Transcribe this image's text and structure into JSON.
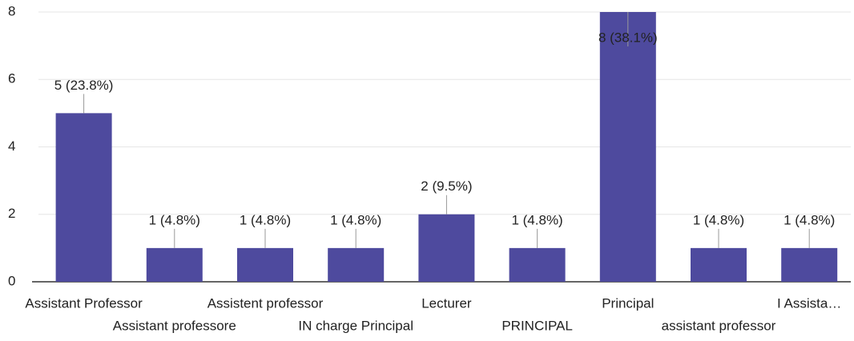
{
  "chart_data": {
    "type": "bar",
    "categories": [
      "Assistant Professor",
      "Assistant professore",
      "Assistent professor",
      "IN charge Principal",
      "Lecturer",
      "PRINCIPAL",
      "Principal",
      "assistant professor",
      "I Assista…"
    ],
    "values": [
      5,
      1,
      1,
      1,
      2,
      1,
      8,
      1,
      1
    ],
    "value_labels": [
      "5 (23.8%)",
      "1 (4.8%)",
      "1 (4.8%)",
      "1 (4.8%)",
      "2 (9.5%)",
      "1 (4.8%)",
      "8 (38.1%)",
      "1 (4.8%)",
      "1 (4.8%)"
    ],
    "color": "#4e4a9e",
    "ylim": [
      0,
      8
    ],
    "yticks": [
      0,
      2,
      4,
      6,
      8
    ],
    "grid": true
  }
}
